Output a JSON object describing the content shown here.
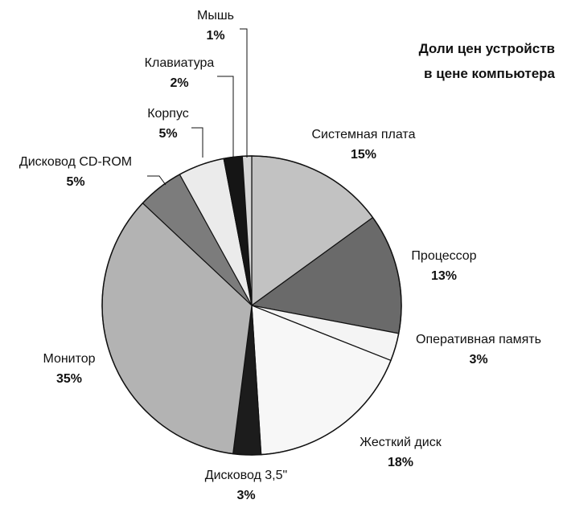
{
  "chart_data": {
    "type": "pie",
    "title": "Доли цен устройств в цене компьютера",
    "title_lines": [
      "Доли цен устройств",
      "в цене компьютера"
    ],
    "slices": [
      {
        "label": "Системная плата",
        "value": 15,
        "pct_text": "15%",
        "color": "#c2c2c2"
      },
      {
        "label": "Процессор",
        "value": 13,
        "pct_text": "13%",
        "color": "#6a6a6a"
      },
      {
        "label": "Оперативная память",
        "value": 3,
        "pct_text": "3%",
        "color": "#f4f4f4"
      },
      {
        "label": "Жесткий диск",
        "value": 18,
        "pct_text": "18%",
        "color": "#f7f7f7"
      },
      {
        "label": "Дисковод 3,5\"",
        "value": 3,
        "pct_text": "3%",
        "color": "#1c1c1c"
      },
      {
        "label": "Монитор",
        "value": 35,
        "pct_text": "35%",
        "color": "#b3b3b3"
      },
      {
        "label": "Дисковод CD-ROM",
        "value": 5,
        "pct_text": "5%",
        "color": "#7c7c7c"
      },
      {
        "label": "Корпус",
        "value": 5,
        "pct_text": "5%",
        "color": "#ebebeb"
      },
      {
        "label": "Клавиатура",
        "value": 2,
        "pct_text": "2%",
        "color": "#151515"
      },
      {
        "label": "Мышь",
        "value": 1,
        "pct_text": "1%",
        "color": "#d5d5d5"
      }
    ],
    "legend": "none (labels beside slices)"
  }
}
